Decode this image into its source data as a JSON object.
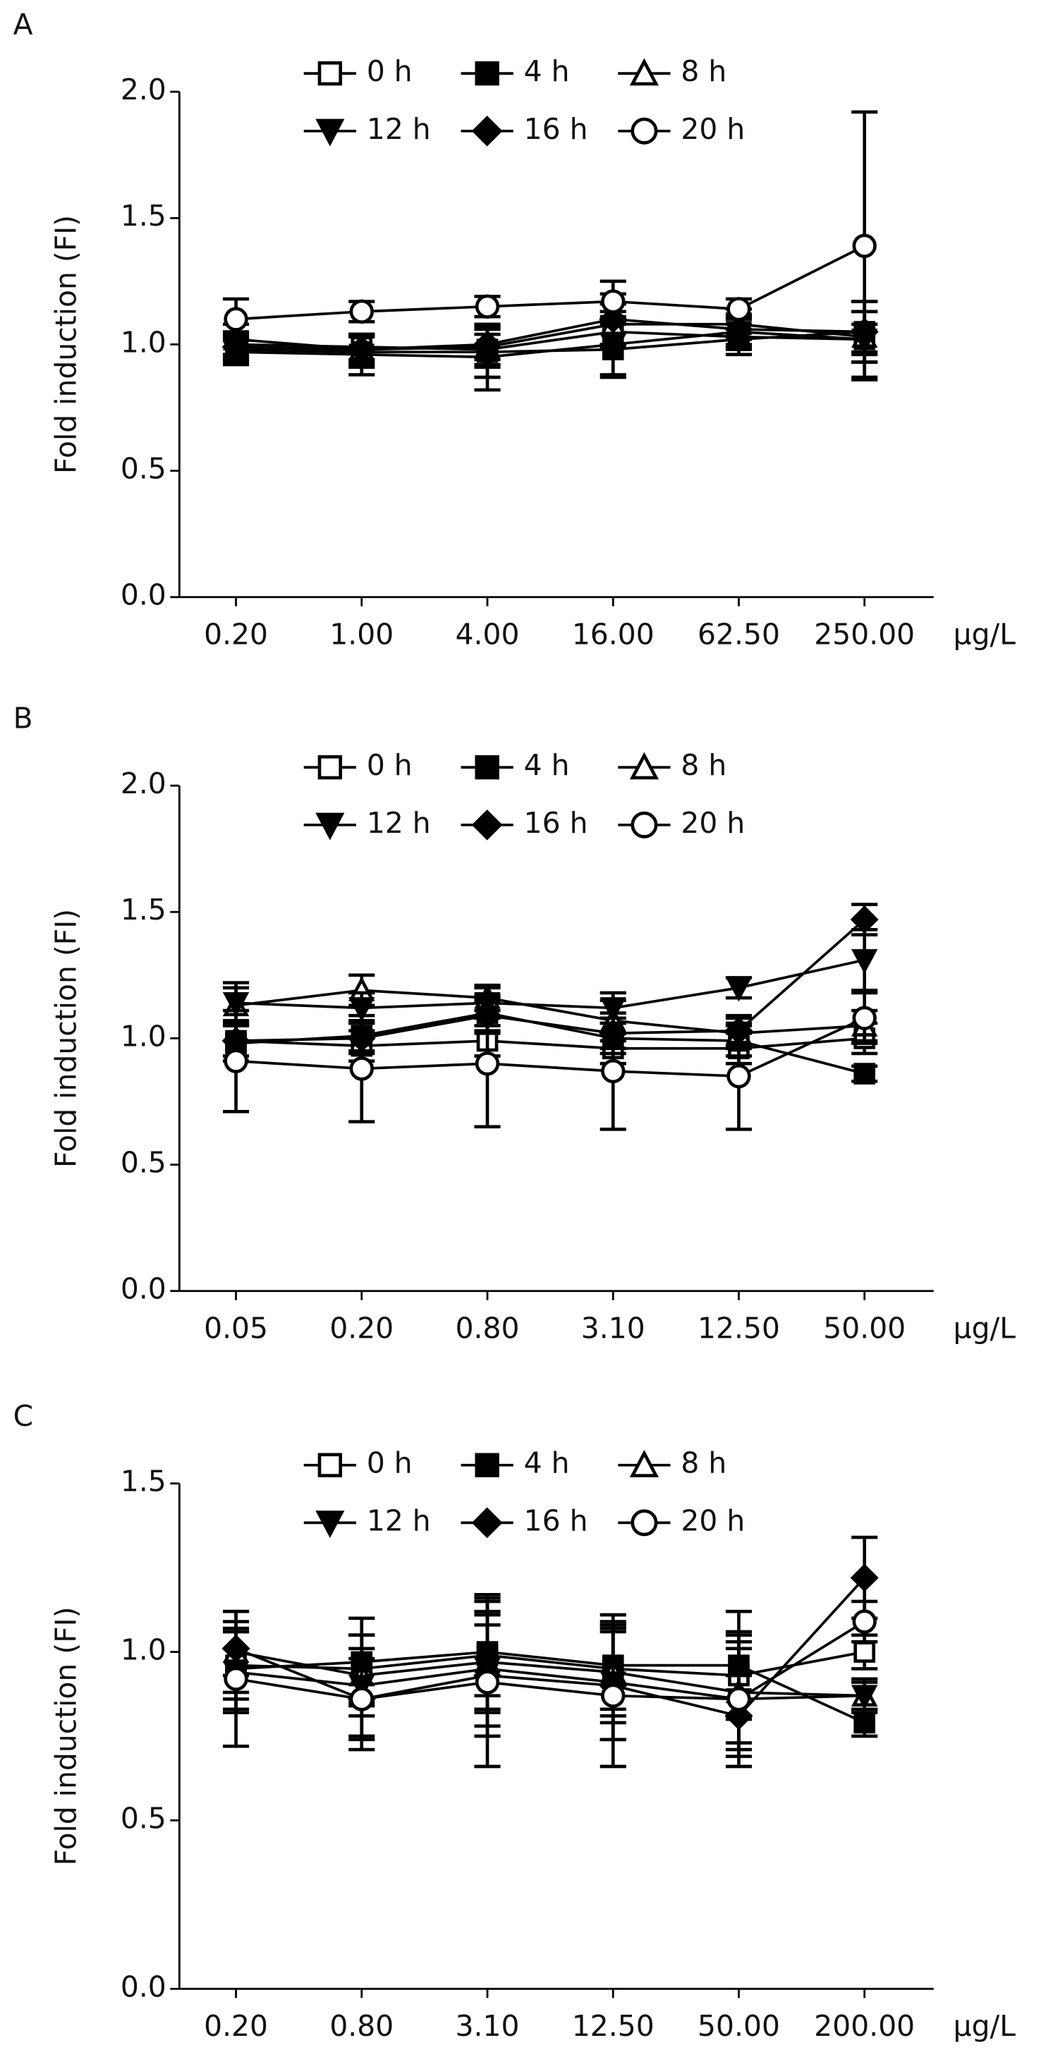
{
  "chart_data": [
    {
      "type": "line",
      "panel": "A",
      "y_label": "Fold induction (FI)",
      "x_unit": "μg/L",
      "categories": [
        "0.20",
        "1.00",
        "4.00",
        "16.00",
        "62.50",
        "250.00"
      ],
      "ylim": [
        0,
        2
      ],
      "yticks": [
        {
          "value": 0,
          "label": "0.0"
        },
        0.5,
        {
          "value": 1,
          "label": "1.0"
        },
        1.5,
        {
          "value": 2,
          "label": "2.0"
        }
      ],
      "series": [
        {
          "name": "0 h",
          "color": "#000",
          "marker": "square",
          "filled": false,
          "values": [
            1.0,
            0.99,
            0.98,
            1.05,
            1.03,
            1.02
          ],
          "errors": [
            0.05,
            0.05,
            0.06,
            0.06,
            0.05,
            0.06
          ]
        },
        {
          "name": "4 h",
          "color": "#000",
          "marker": "square",
          "filled": true,
          "values": [
            0.98,
            0.97,
            0.97,
            0.98,
            1.02,
            1.05
          ],
          "errors": [
            0.05,
            0.06,
            0.1,
            0.1,
            0.06,
            0.08
          ]
        },
        {
          "name": "8 h",
          "color": "#000",
          "marker": "triangle",
          "filled": false,
          "values": [
            1.02,
            0.98,
            0.99,
            1.08,
            1.08,
            1.03
          ],
          "errors": [
            0.06,
            0.06,
            0.08,
            0.08,
            0.06,
            0.1
          ]
        },
        {
          "name": "12 h",
          "color": "#000",
          "marker": "triangle-down",
          "filled": true,
          "values": [
            0.97,
            0.96,
            0.95,
            1.0,
            1.05,
            1.02
          ],
          "errors": [
            0.05,
            0.08,
            0.13,
            0.13,
            0.06,
            0.15
          ]
        },
        {
          "name": "16 h",
          "color": "#000",
          "marker": "diamond",
          "filled": true,
          "values": [
            0.99,
            0.98,
            1.0,
            1.1,
            1.06,
            1.05
          ],
          "errors": [
            0.05,
            0.05,
            0.06,
            0.1,
            0.06,
            0.12
          ]
        },
        {
          "name": "20 h",
          "color": "#000",
          "marker": "circle",
          "filled": false,
          "values": [
            1.1,
            1.13,
            1.15,
            1.17,
            1.14,
            1.39
          ],
          "errors": [
            0.08,
            0.04,
            0.04,
            0.08,
            0.04,
            0.53
          ]
        }
      ]
    },
    {
      "type": "line",
      "panel": "B",
      "y_label": "Fold induction (FI)",
      "x_unit": "μg/L",
      "categories": [
        "0.05",
        "0.20",
        "0.80",
        "3.10",
        "12.50",
        "50.00"
      ],
      "ylim": [
        0,
        2
      ],
      "yticks": [
        {
          "value": 0,
          "label": "0.0"
        },
        0.5,
        {
          "value": 1,
          "label": "1.0"
        },
        1.5,
        {
          "value": 2,
          "label": "2.0"
        }
      ],
      "series": [
        {
          "name": "0 h",
          "color": "#000",
          "marker": "square",
          "filled": false,
          "values": [
            0.99,
            0.97,
            0.99,
            0.96,
            0.96,
            1.0
          ],
          "errors": [
            0.06,
            0.06,
            0.06,
            0.06,
            0.06,
            0.06
          ]
        },
        {
          "name": "4 h",
          "color": "#000",
          "marker": "square",
          "filled": true,
          "values": [
            0.98,
            1.01,
            1.1,
            1.0,
            0.99,
            0.86
          ],
          "errors": [
            0.07,
            0.06,
            0.07,
            0.06,
            0.06,
            0.03
          ]
        },
        {
          "name": "8 h",
          "color": "#000",
          "marker": "triangle",
          "filled": false,
          "values": [
            1.13,
            1.19,
            1.16,
            1.07,
            1.02,
            1.05
          ],
          "errors": [
            0.07,
            0.06,
            0.05,
            0.08,
            0.06,
            0.06
          ]
        },
        {
          "name": "12 h",
          "color": "#000",
          "marker": "triangle-down",
          "filled": true,
          "values": [
            1.14,
            1.12,
            1.14,
            1.12,
            1.2,
            1.31
          ],
          "errors": [
            0.08,
            0.06,
            0.06,
            0.06,
            0.04,
            0.12
          ]
        },
        {
          "name": "16 h",
          "color": "#000",
          "marker": "diamond",
          "filled": true,
          "values": [
            0.99,
            1.0,
            1.09,
            1.02,
            1.03,
            1.47
          ],
          "errors": [
            0.08,
            0.06,
            0.07,
            0.06,
            0.06,
            0.06
          ]
        },
        {
          "name": "20 h",
          "color": "#000",
          "marker": "circle",
          "filled": false,
          "values": [
            0.91,
            0.88,
            0.9,
            0.87,
            0.85,
            1.08
          ],
          "errors": [
            0.2,
            0.21,
            0.25,
            0.23,
            0.21,
            0.1
          ]
        }
      ]
    },
    {
      "type": "line",
      "panel": "C",
      "y_label": "Fold induction (FI)",
      "x_unit": "μg/L",
      "categories": [
        "0.20",
        "0.80",
        "3.10",
        "12.50",
        "50.00",
        "200.00"
      ],
      "ylim": [
        0,
        1.5
      ],
      "yticks": [
        {
          "value": 0,
          "label": "0.0"
        },
        0.5,
        {
          "value": 1,
          "label": "1.0"
        },
        1.5
      ],
      "series": [
        {
          "name": "0 h",
          "color": "#000",
          "marker": "square",
          "filled": false,
          "values": [
            0.96,
            0.95,
            0.99,
            0.95,
            0.93,
            1.0
          ],
          "errors": [
            0.1,
            0.1,
            0.12,
            0.12,
            0.12,
            0.05
          ]
        },
        {
          "name": "4 h",
          "color": "#000",
          "marker": "square",
          "filled": true,
          "values": [
            0.95,
            0.97,
            1.0,
            0.96,
            0.96,
            0.79
          ],
          "errors": [
            0.12,
            0.13,
            0.17,
            0.15,
            0.16,
            0.04
          ]
        },
        {
          "name": "8 h",
          "color": "#000",
          "marker": "triangle",
          "filled": false,
          "values": [
            1.0,
            0.93,
            0.97,
            0.94,
            0.88,
            0.87
          ],
          "errors": [
            0.12,
            0.12,
            0.15,
            0.15,
            0.15,
            0.04
          ]
        },
        {
          "name": "12 h",
          "color": "#000",
          "marker": "triangle-down",
          "filled": true,
          "values": [
            0.94,
            0.9,
            0.95,
            0.91,
            0.86,
            0.87
          ],
          "errors": [
            0.12,
            0.15,
            0.2,
            0.17,
            0.15,
            0.05
          ]
        },
        {
          "name": "16 h",
          "color": "#000",
          "marker": "diamond",
          "filled": true,
          "values": [
            1.01,
            0.86,
            0.93,
            0.9,
            0.81,
            1.22
          ],
          "errors": [
            0.08,
            0.12,
            0.15,
            0.16,
            0.12,
            0.12
          ]
        },
        {
          "name": "20 h",
          "color": "#000",
          "marker": "circle",
          "filled": false,
          "values": [
            0.92,
            0.86,
            0.91,
            0.87,
            0.86,
            1.09
          ],
          "errors": [
            0.2,
            0.15,
            0.25,
            0.21,
            0.2,
            0.06
          ]
        }
      ]
    }
  ]
}
